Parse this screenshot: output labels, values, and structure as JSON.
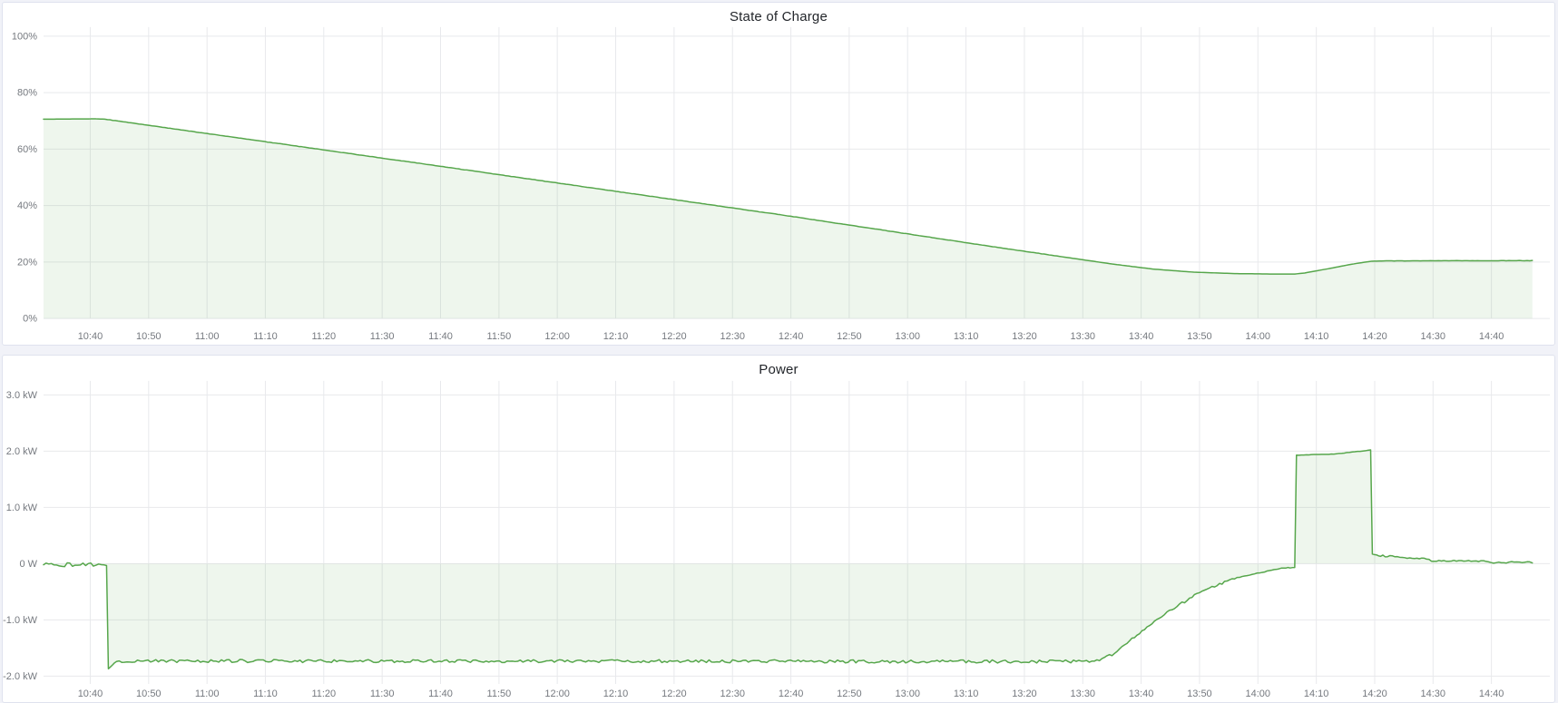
{
  "page": {
    "background": "#f1f2f8",
    "panel_background": "#ffffff",
    "panel_border": "#dfe2ee"
  },
  "panels": [
    {
      "title": "State of Charge"
    },
    {
      "title": "Power"
    }
  ],
  "chart_data": [
    {
      "type": "area",
      "title": "State of Charge",
      "xlabel": "",
      "ylabel": "",
      "unit": "%",
      "xlim": [
        632,
        890
      ],
      "ylim": [
        0,
        103.2
      ],
      "baseline": 0,
      "grid": true,
      "legend_position": "none",
      "line_color": "#56a64b",
      "fill_color": "rgba(86,166,75,0.10)",
      "grid_color": "#e8e9ec",
      "x_ticks": [
        {
          "t": 640,
          "label": "10:40"
        },
        {
          "t": 650,
          "label": "10:50"
        },
        {
          "t": 660,
          "label": "11:00"
        },
        {
          "t": 670,
          "label": "11:10"
        },
        {
          "t": 680,
          "label": "11:20"
        },
        {
          "t": 690,
          "label": "11:30"
        },
        {
          "t": 700,
          "label": "11:40"
        },
        {
          "t": 710,
          "label": "11:50"
        },
        {
          "t": 720,
          "label": "12:00"
        },
        {
          "t": 730,
          "label": "12:10"
        },
        {
          "t": 740,
          "label": "12:20"
        },
        {
          "t": 750,
          "label": "12:30"
        },
        {
          "t": 760,
          "label": "12:40"
        },
        {
          "t": 770,
          "label": "12:50"
        },
        {
          "t": 780,
          "label": "13:00"
        },
        {
          "t": 790,
          "label": "13:10"
        },
        {
          "t": 800,
          "label": "13:20"
        },
        {
          "t": 810,
          "label": "13:30"
        },
        {
          "t": 820,
          "label": "13:40"
        },
        {
          "t": 830,
          "label": "13:50"
        },
        {
          "t": 840,
          "label": "14:00"
        },
        {
          "t": 850,
          "label": "14:10"
        },
        {
          "t": 860,
          "label": "14:20"
        },
        {
          "t": 870,
          "label": "14:30"
        },
        {
          "t": 880,
          "label": "14:40"
        }
      ],
      "y_ticks": [
        {
          "v": 100,
          "label": "100%"
        },
        {
          "v": 80,
          "label": "80%"
        },
        {
          "v": 60,
          "label": "60%"
        },
        {
          "v": 40,
          "label": "40%"
        },
        {
          "v": 20,
          "label": "20%"
        },
        {
          "v": 0,
          "label": "0%"
        }
      ],
      "series": [
        {
          "name": "State of Charge",
          "segments": [
            [
              632,
              70.6,
              641,
              70.7,
              0
            ],
            [
              641,
              70.7,
              642.5,
              70.6,
              0
            ],
            [
              642.5,
              70.6,
              700,
              53.9,
              0.05
            ],
            [
              700,
              53.9,
              760,
              36.2,
              0.05
            ],
            [
              760,
              36.2,
              795,
              25.3,
              0.05
            ],
            [
              795,
              25.3,
              806,
              22.0,
              0.05
            ],
            [
              806,
              22.0,
              815,
              19.3,
              0
            ],
            [
              815,
              19.3,
              822,
              17.5,
              0
            ],
            [
              822,
              17.5,
              829,
              16.4,
              0
            ],
            [
              829,
              16.4,
              836,
              15.9,
              0
            ],
            [
              836,
              15.9,
              842,
              15.75,
              0
            ],
            [
              842,
              15.75,
              846.3,
              15.75,
              0
            ],
            [
              846.3,
              15.75,
              848,
              16.1,
              0
            ],
            [
              848,
              16.1,
              852,
              17.6,
              0
            ],
            [
              852,
              17.6,
              856,
              19.2,
              0
            ],
            [
              856,
              19.2,
              859.5,
              20.3,
              0
            ],
            [
              859.5,
              20.3,
              862,
              20.4,
              0
            ],
            [
              862,
              20.4,
              887,
              20.5,
              0.05
            ]
          ]
        }
      ]
    },
    {
      "type": "area",
      "title": "Power",
      "xlabel": "",
      "ylabel": "",
      "unit": "kW",
      "xlim": [
        632,
        890
      ],
      "ylim": [
        -2.14,
        3.25
      ],
      "baseline": 0,
      "grid": true,
      "legend_position": "none",
      "line_color": "#56a64b",
      "fill_color": "rgba(86,166,75,0.10)",
      "grid_color": "#e8e9ec",
      "x_ticks": [
        {
          "t": 640,
          "label": "10:40"
        },
        {
          "t": 650,
          "label": "10:50"
        },
        {
          "t": 660,
          "label": "11:00"
        },
        {
          "t": 670,
          "label": "11:10"
        },
        {
          "t": 680,
          "label": "11:20"
        },
        {
          "t": 690,
          "label": "11:30"
        },
        {
          "t": 700,
          "label": "11:40"
        },
        {
          "t": 710,
          "label": "11:50"
        },
        {
          "t": 720,
          "label": "12:00"
        },
        {
          "t": 730,
          "label": "12:10"
        },
        {
          "t": 740,
          "label": "12:20"
        },
        {
          "t": 750,
          "label": "12:30"
        },
        {
          "t": 760,
          "label": "12:40"
        },
        {
          "t": 770,
          "label": "12:50"
        },
        {
          "t": 780,
          "label": "13:00"
        },
        {
          "t": 790,
          "label": "13:10"
        },
        {
          "t": 800,
          "label": "13:20"
        },
        {
          "t": 810,
          "label": "13:30"
        },
        {
          "t": 820,
          "label": "13:40"
        },
        {
          "t": 830,
          "label": "13:50"
        },
        {
          "t": 840,
          "label": "14:00"
        },
        {
          "t": 850,
          "label": "14:10"
        },
        {
          "t": 860,
          "label": "14:20"
        },
        {
          "t": 870,
          "label": "14:30"
        },
        {
          "t": 880,
          "label": "14:40"
        }
      ],
      "y_ticks": [
        {
          "v": 3,
          "label": "3.0 kW"
        },
        {
          "v": 2,
          "label": "2.0 kW"
        },
        {
          "v": 1,
          "label": "1.0 kW"
        },
        {
          "v": 0,
          "label": "0 W"
        },
        {
          "v": -1,
          "label": "-1.0 kW"
        },
        {
          "v": -2,
          "label": "-2.0 kW"
        }
      ],
      "series": [
        {
          "name": "Power",
          "segments": [
            [
              632,
              -0.02,
              642.8,
              -0.02,
              0.035
            ],
            [
              642.8,
              -0.02,
              643.1,
              -1.87,
              0
            ],
            [
              643.1,
              -1.87,
              644.5,
              -1.73,
              0.01
            ],
            [
              644.5,
              -1.73,
              812,
              -1.74,
              0.028
            ],
            [
              812,
              -1.74,
              815,
              -1.62,
              0.02
            ],
            [
              815,
              -1.62,
              818,
              -1.38,
              0.025
            ],
            [
              818,
              -1.38,
              821,
              -1.13,
              0.025
            ],
            [
              821,
              -1.13,
              824,
              -0.9,
              0.025
            ],
            [
              824,
              -0.9,
              827,
              -0.7,
              0.025
            ],
            [
              827,
              -0.7,
              830,
              -0.52,
              0.025
            ],
            [
              830,
              -0.52,
              833,
              -0.38,
              0.02
            ],
            [
              833,
              -0.38,
              836,
              -0.27,
              0.02
            ],
            [
              836,
              -0.27,
              839,
              -0.19,
              0.015
            ],
            [
              839,
              -0.19,
              842,
              -0.12,
              0.012
            ],
            [
              842,
              -0.12,
              844,
              -0.08,
              0.01
            ],
            [
              844,
              -0.08,
              846.3,
              -0.07,
              0.008
            ],
            [
              846.3,
              -0.07,
              846.6,
              1.93,
              0
            ],
            [
              846.6,
              1.93,
              853,
              1.95,
              0.004
            ],
            [
              853,
              1.95,
              859.3,
              2.02,
              0.004
            ],
            [
              859.3,
              2.02,
              859.6,
              0.17,
              0
            ],
            [
              859.6,
              0.17,
              861,
              0.14,
              0.015
            ],
            [
              861,
              0.14,
              863,
              0.13,
              0.015
            ],
            [
              863,
              0.13,
              866,
              0.1,
              0.012
            ],
            [
              866,
              0.1,
              869.3,
              0.085,
              0.01
            ],
            [
              869.3,
              0.05,
              874,
              0.05,
              0.01
            ],
            [
              874,
              0.05,
              879.5,
              0.04,
              0.012
            ],
            [
              879.5,
              0.015,
              883,
              0.02,
              0.012
            ],
            [
              883,
              0.02,
              887,
              0.02,
              0.02
            ]
          ]
        }
      ]
    }
  ]
}
